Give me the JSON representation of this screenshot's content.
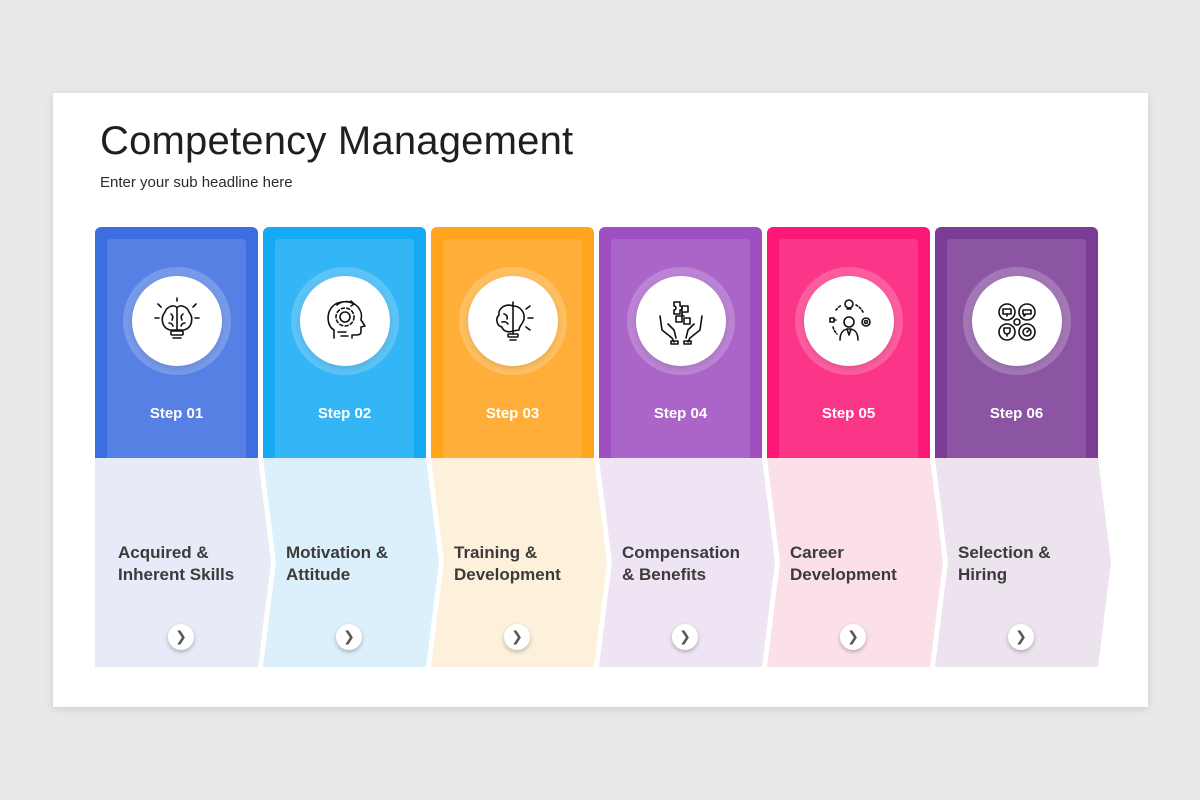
{
  "slide": {
    "title": "Competency Management",
    "subtitle": "Enter your sub headline here"
  },
  "steps": [
    {
      "label": "Step 01",
      "text_line1": "Acquired &",
      "text_line2": "Inherent Skills",
      "color": "#3d6ee0",
      "light": "#e7ebf8",
      "icon": "brain-icon"
    },
    {
      "label": "Step 02",
      "text_line1": "Motivation &",
      "text_line2": "Attitude",
      "color": "#16aaf4",
      "light": "#dcf0fb",
      "icon": "head-gear-icon"
    },
    {
      "label": "Step 03",
      "text_line1": "Training &",
      "text_line2": "Development",
      "color": "#ffa41c",
      "light": "#fdf1dc",
      "icon": "brain-bulb-icon"
    },
    {
      "label": "Step 04",
      "text_line1": "Compensation",
      "text_line2": "& Benefits",
      "color": "#9f4fc2",
      "light": "#efe4f3",
      "icon": "hands-puzzle-icon"
    },
    {
      "label": "Step 05",
      "text_line1": "Career",
      "text_line2": "Development",
      "color": "#fb1876",
      "light": "#fbe0ea",
      "icon": "career-person-icon"
    },
    {
      "label": "Step 06",
      "text_line1": "Selection &",
      "text_line2": "Hiring",
      "color": "#7b3c96",
      "light": "#ece3ee",
      "icon": "hiring-icons-icon"
    }
  ],
  "next_glyph": "❯"
}
